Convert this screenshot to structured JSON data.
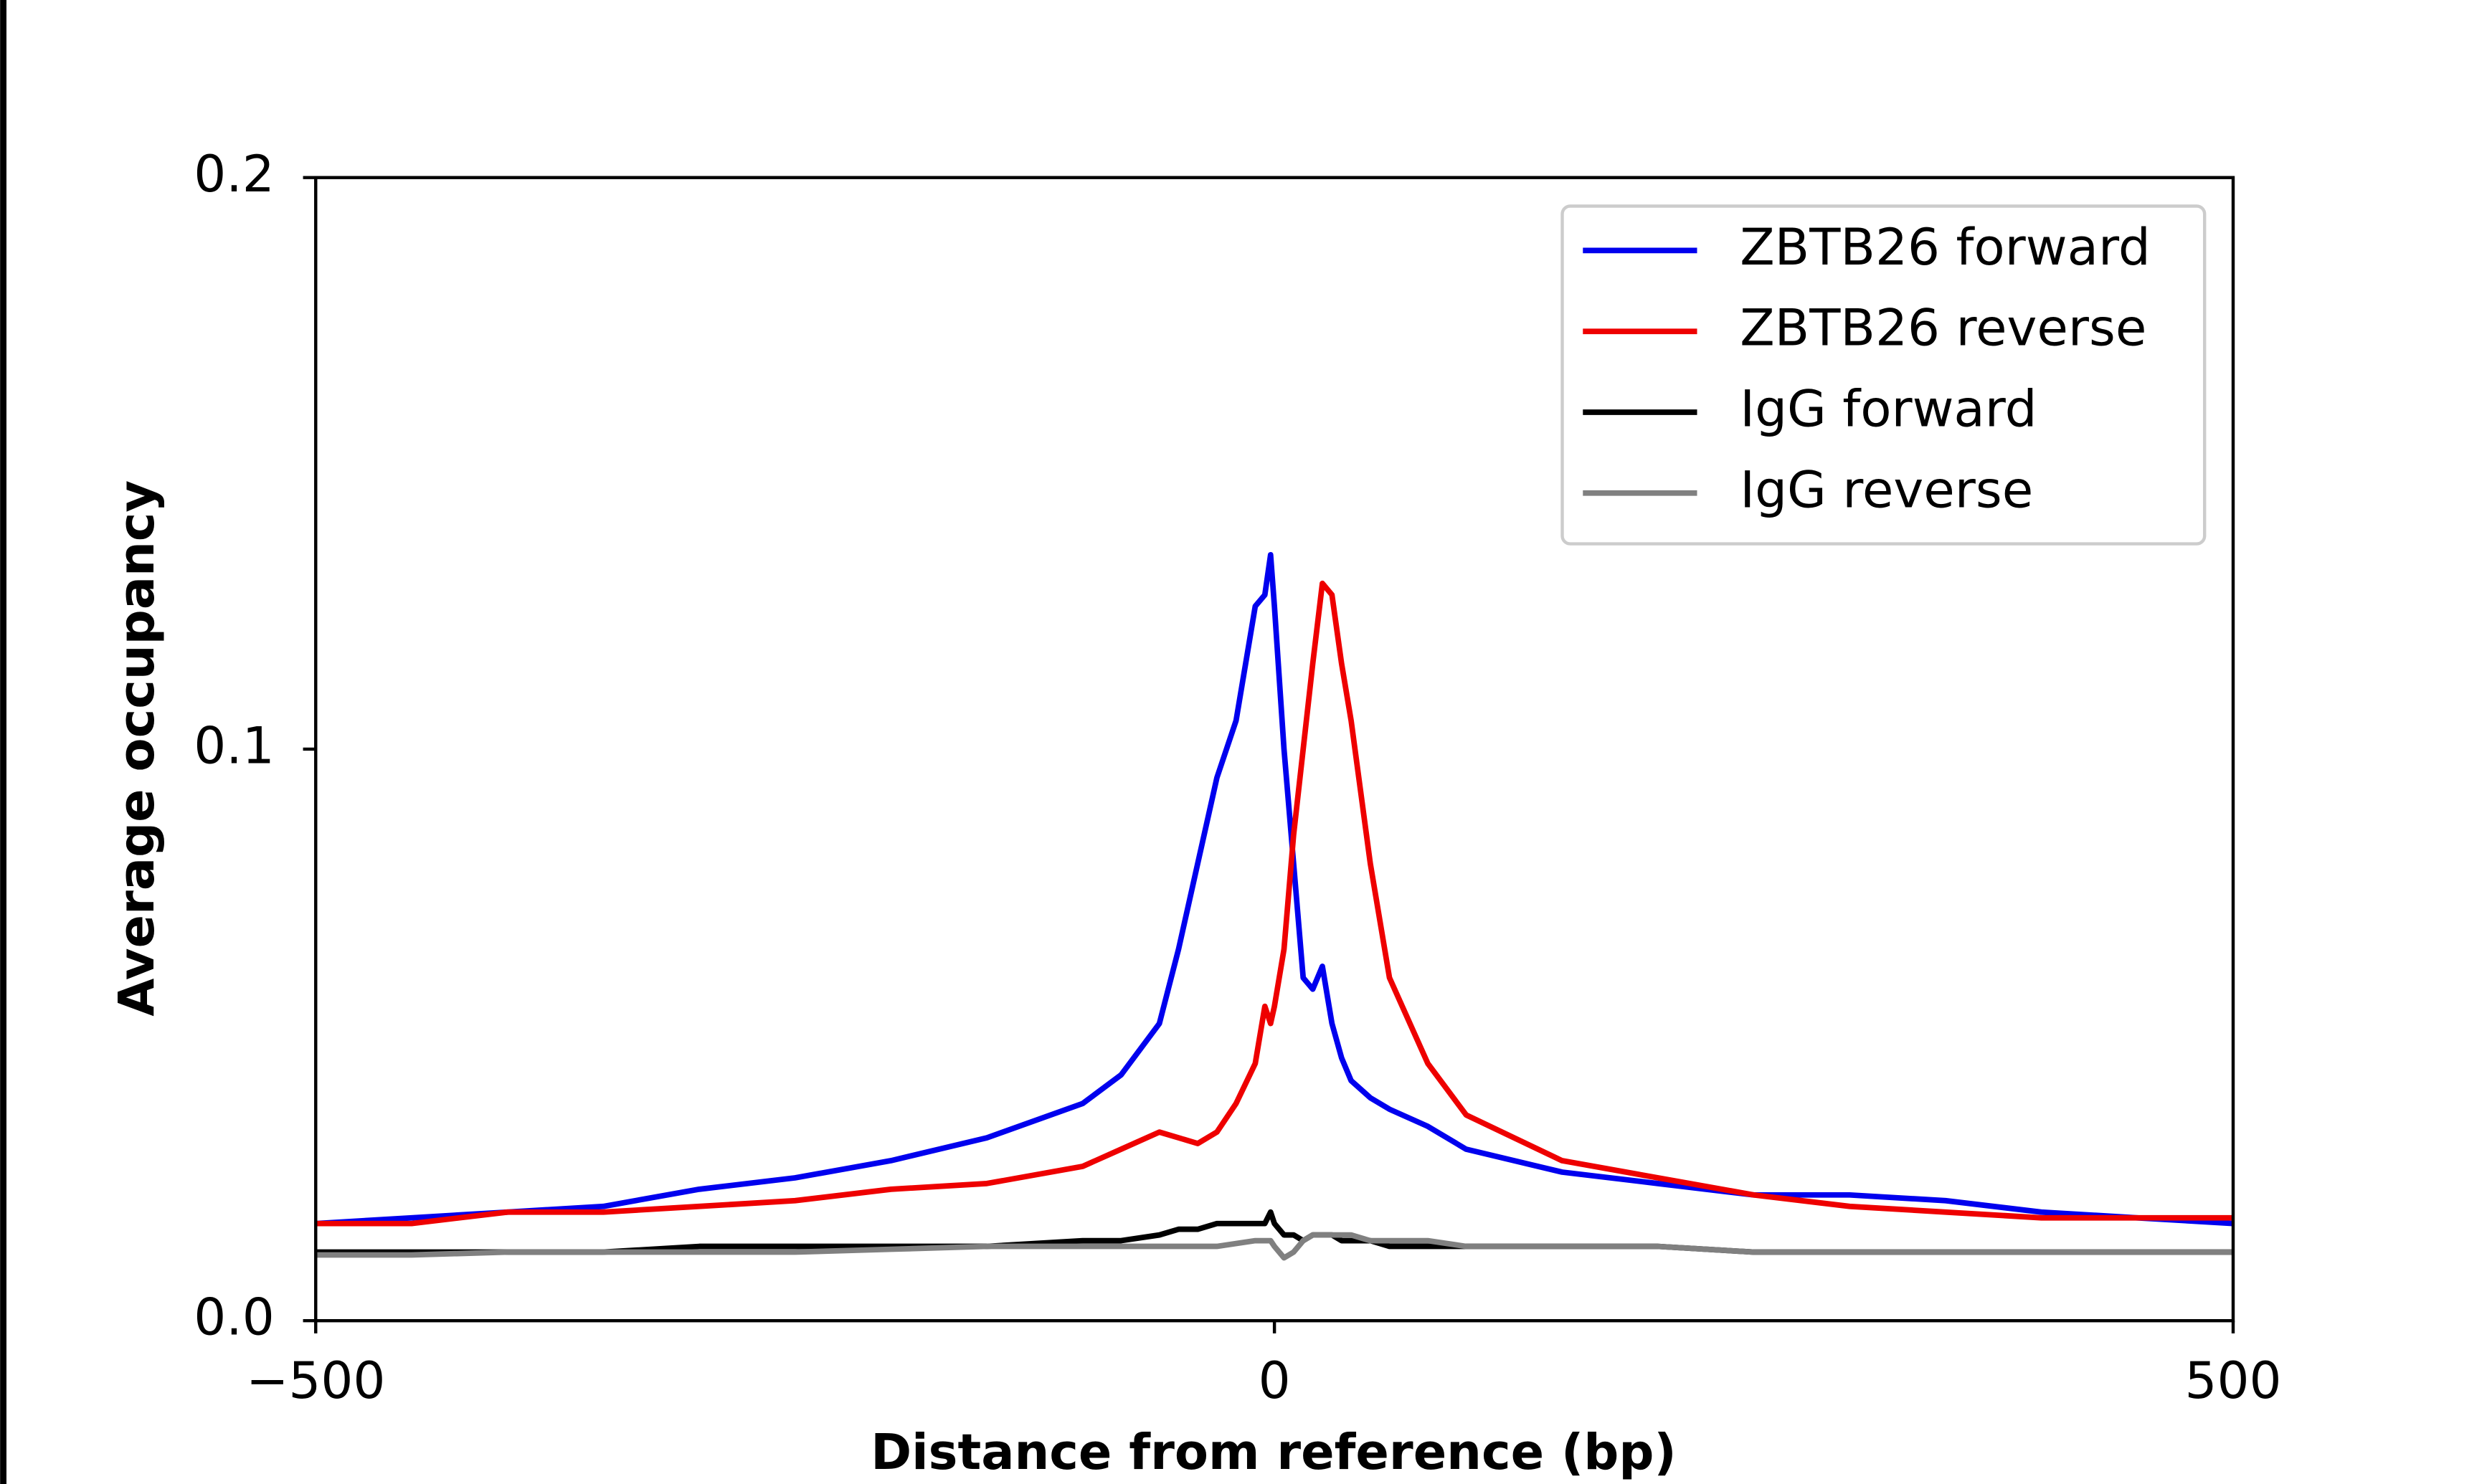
{
  "chart_data": {
    "type": "line",
    "xlabel": "Distance from reference (bp)",
    "ylabel": "Average occupancy",
    "x": [
      -500,
      -450,
      -400,
      -350,
      -300,
      -250,
      -200,
      -150,
      -100,
      -80,
      -60,
      -50,
      -40,
      -30,
      -20,
      -10,
      -5,
      -2,
      0,
      5,
      10,
      15,
      20,
      25,
      30,
      35,
      40,
      50,
      60,
      80,
      100,
      150,
      200,
      250,
      300,
      350,
      400,
      450,
      500
    ],
    "series": [
      {
        "name": "ZBTB26 forward",
        "color": "#0000ee",
        "values": [
          0.017,
          0.018,
          0.019,
          0.02,
          0.023,
          0.025,
          0.028,
          0.032,
          0.038,
          0.043,
          0.052,
          0.065,
          0.08,
          0.095,
          0.105,
          0.125,
          0.127,
          0.134,
          0.125,
          0.1,
          0.08,
          0.06,
          0.058,
          0.062,
          0.052,
          0.046,
          0.042,
          0.039,
          0.037,
          0.034,
          0.03,
          0.026,
          0.024,
          0.022,
          0.022,
          0.021,
          0.019,
          0.018,
          0.017
        ]
      },
      {
        "name": "ZBTB26 reverse",
        "color": "#ee0000",
        "values": [
          0.017,
          0.017,
          0.019,
          0.019,
          0.02,
          0.021,
          0.023,
          0.024,
          0.027,
          0.03,
          0.033,
          0.032,
          0.031,
          0.033,
          0.038,
          0.045,
          0.055,
          0.052,
          0.055,
          0.065,
          0.085,
          0.1,
          0.115,
          0.129,
          0.127,
          0.115,
          0.105,
          0.08,
          0.06,
          0.045,
          0.036,
          0.028,
          0.025,
          0.022,
          0.02,
          0.019,
          0.018,
          0.018,
          0.018
        ]
      },
      {
        "name": "IgG forward",
        "color": "#000000",
        "values": [
          0.012,
          0.012,
          0.012,
          0.012,
          0.013,
          0.013,
          0.013,
          0.013,
          0.014,
          0.014,
          0.015,
          0.016,
          0.016,
          0.017,
          0.017,
          0.017,
          0.017,
          0.019,
          0.017,
          0.015,
          0.015,
          0.014,
          0.015,
          0.015,
          0.015,
          0.014,
          0.014,
          0.014,
          0.013,
          0.013,
          0.013,
          0.013,
          0.013,
          0.012,
          0.012,
          0.012,
          0.012,
          0.012,
          0.012
        ]
      },
      {
        "name": "IgG reverse",
        "color": "#808080",
        "values": [
          0.0115,
          0.0115,
          0.012,
          0.012,
          0.012,
          0.012,
          0.0125,
          0.013,
          0.013,
          0.013,
          0.013,
          0.013,
          0.013,
          0.013,
          0.0135,
          0.014,
          0.014,
          0.014,
          0.013,
          0.011,
          0.012,
          0.014,
          0.015,
          0.015,
          0.015,
          0.015,
          0.015,
          0.014,
          0.014,
          0.014,
          0.013,
          0.013,
          0.013,
          0.012,
          0.012,
          0.012,
          0.012,
          0.012,
          0.012
        ]
      }
    ],
    "xlim": [
      -500,
      500
    ],
    "ylim": [
      0,
      0.2
    ],
    "xticks": [
      {
        "value": -500,
        "label": "−500"
      },
      0,
      500
    ],
    "yticks": [
      {
        "value": 0,
        "label": "0.0"
      },
      0.1,
      0.2
    ],
    "legend": "upper right"
  }
}
